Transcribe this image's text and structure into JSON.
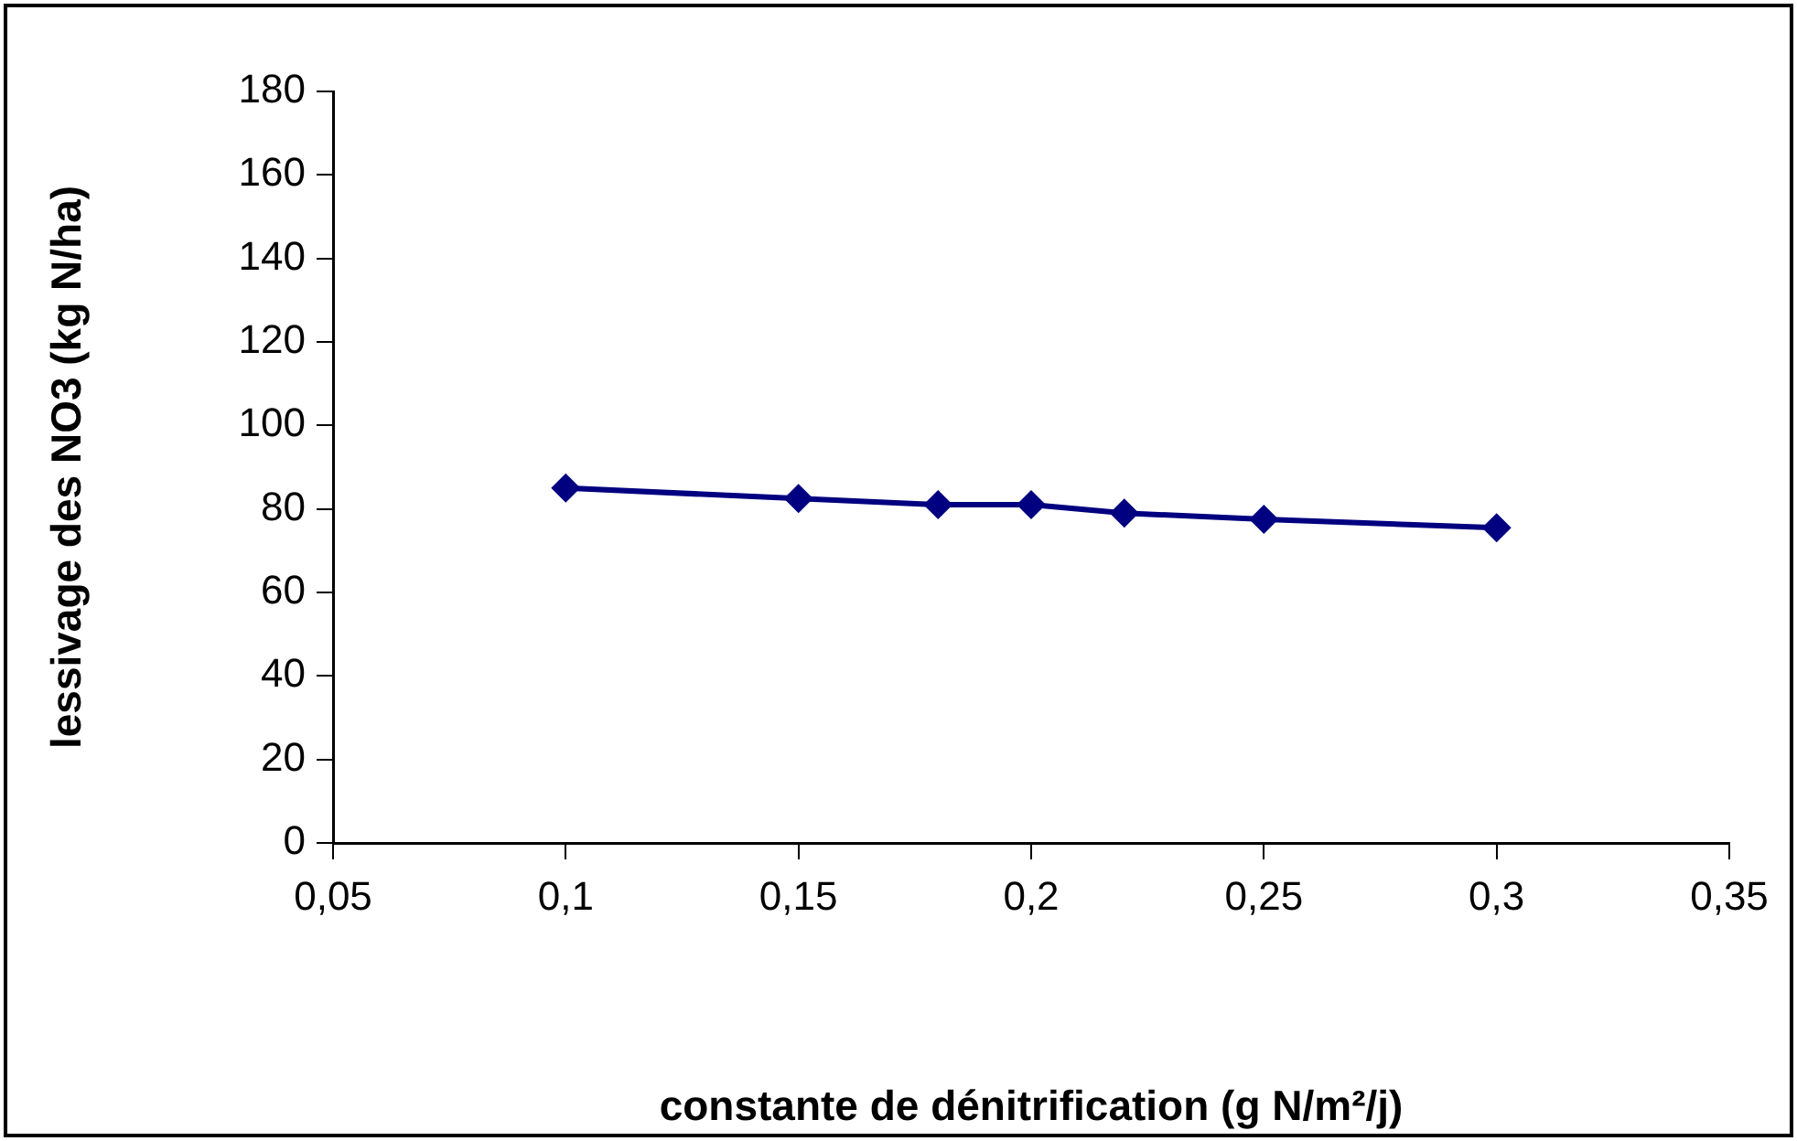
{
  "chart_data": {
    "type": "line",
    "xlabel": "constante de dénitrification (g N/m²/j)",
    "ylabel": "lessivage des NO3 (kg N/ha)",
    "x": [
      0.1,
      0.15,
      0.18,
      0.2,
      0.22,
      0.25,
      0.3
    ],
    "series": [
      {
        "color": "#000080",
        "values": [
          85,
          82.5,
          81,
          81,
          79,
          77.5,
          75.5
        ]
      }
    ],
    "xlim": [
      0.05,
      0.35
    ],
    "xticks": [
      {
        "value": 0.05,
        "label": "0,05"
      },
      {
        "value": 0.1,
        "label": "0,1"
      },
      {
        "value": 0.15,
        "label": "0,15"
      },
      {
        "value": 0.2,
        "label": "0,2"
      },
      {
        "value": 0.25,
        "label": "0,25"
      },
      {
        "value": 0.3,
        "label": "0,3"
      },
      {
        "value": 0.35,
        "label": "0,35"
      }
    ],
    "ylim": [
      0,
      180
    ],
    "yticks": [
      0,
      20,
      40,
      60,
      80,
      100,
      120,
      140,
      160,
      180
    ],
    "grid": false,
    "legend": false,
    "marker": "diamond",
    "line_style": "solid"
  }
}
